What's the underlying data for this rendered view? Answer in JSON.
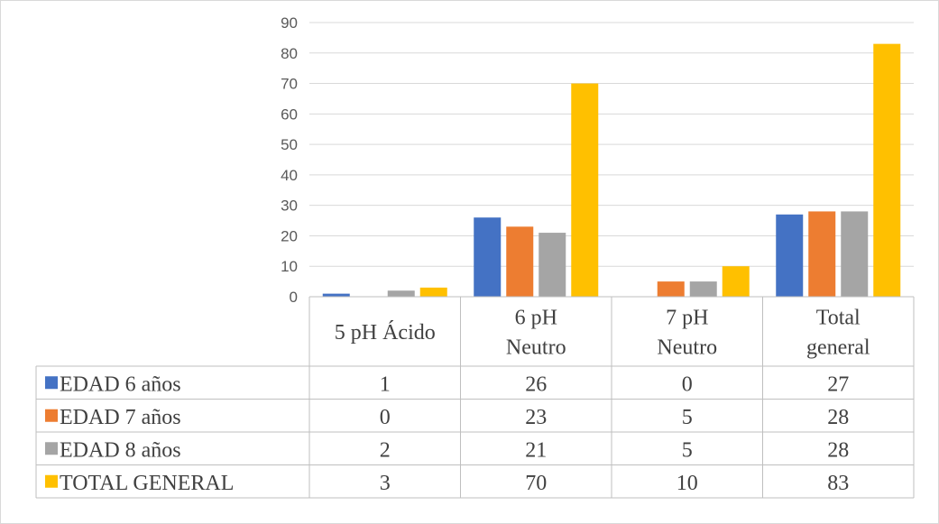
{
  "chart_data": {
    "type": "bar",
    "title": "",
    "xlabel": "",
    "ylabel": "",
    "ylim": [
      0,
      90
    ],
    "yticks": [
      "0",
      "10",
      "20",
      "30",
      "40",
      "50",
      "60",
      "70",
      "80",
      "90"
    ],
    "grid": true,
    "legend": "data-table",
    "categories": [
      [
        "5 pH Ácido"
      ],
      [
        "6 pH",
        "Neutro"
      ],
      [
        "7 pH",
        "Neutro"
      ],
      [
        "Total",
        "general"
      ]
    ],
    "series": [
      {
        "name": "EDAD 6 años",
        "color": "#4472C4",
        "values": [
          1,
          26,
          0,
          27
        ],
        "labels": [
          "1",
          "26",
          "0",
          "27"
        ]
      },
      {
        "name": "EDAD 7 años",
        "color": "#ED7D31",
        "values": [
          0,
          23,
          5,
          28
        ],
        "labels": [
          "0",
          "23",
          "5",
          "28"
        ]
      },
      {
        "name": "EDAD 8 años",
        "color": "#A5A5A5",
        "values": [
          2,
          21,
          5,
          28
        ],
        "labels": [
          "2",
          "21",
          "5",
          "28"
        ]
      },
      {
        "name": "TOTAL GENERAL",
        "color": "#FFC000",
        "values": [
          3,
          70,
          10,
          83
        ],
        "labels": [
          "3",
          "70",
          "10",
          "83"
        ]
      }
    ]
  }
}
